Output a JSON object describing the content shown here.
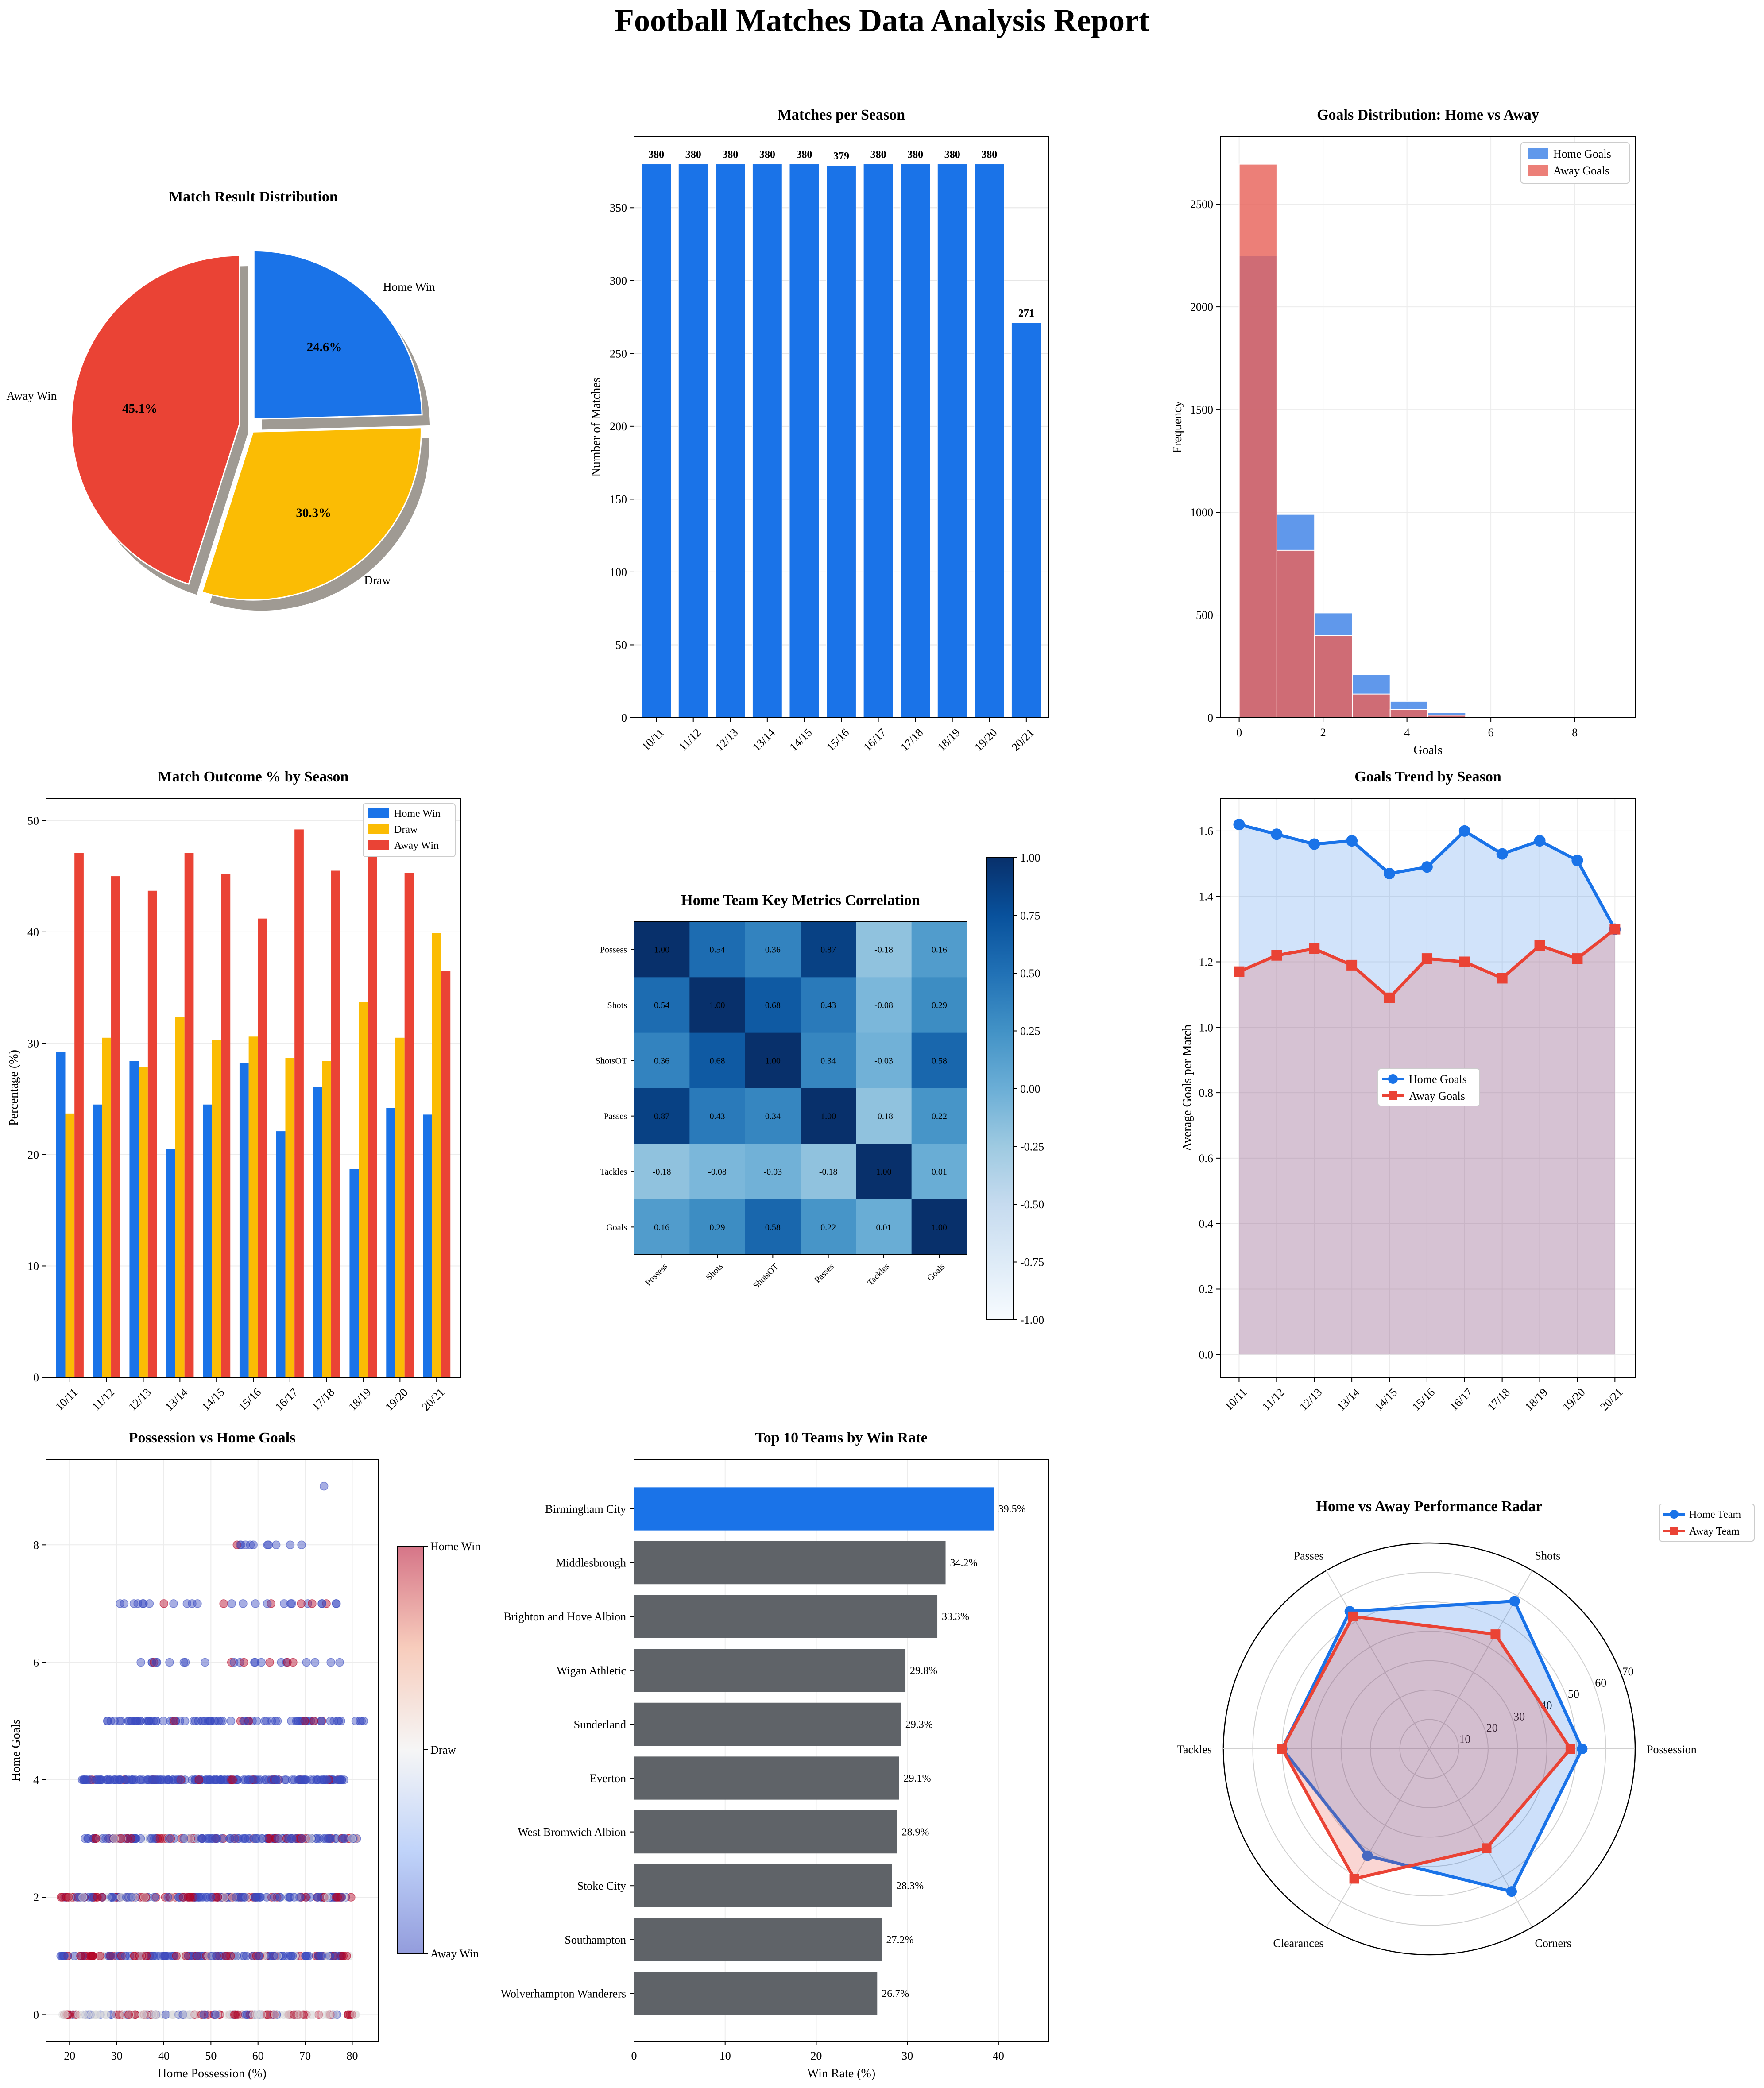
{
  "report_title": "Football Matches Data Analysis Report",
  "colors": {
    "home_win": "#1a73e8",
    "draw": "#fbbc04",
    "away_win": "#ea4335",
    "away_goals_hist": "#e8635a",
    "grey_bar": "#5f6368",
    "away_goals_fill": "#c9b5cc"
  },
  "chart_data": [
    {
      "id": "pie",
      "type": "pie",
      "title": "Match Result Distribution",
      "labels": [
        "Home Win",
        "Draw",
        "Away Win"
      ],
      "values": [
        24.6,
        30.3,
        45.1
      ],
      "value_labels": [
        "24.6%",
        "30.3%",
        "45.1%"
      ],
      "colors": [
        "#1a73e8",
        "#fbbc04",
        "#ea4335"
      ],
      "exploded": true,
      "shadow": true
    },
    {
      "id": "season_matches",
      "type": "bar",
      "title": "Matches per Season",
      "categories": [
        "10/11",
        "11/12",
        "12/13",
        "13/14",
        "14/15",
        "15/16",
        "16/17",
        "17/18",
        "18/19",
        "19/20",
        "20/21"
      ],
      "values": [
        380,
        380,
        380,
        380,
        380,
        379,
        380,
        380,
        380,
        380,
        271
      ],
      "value_labels": [
        "380",
        "380",
        "380",
        "380",
        "380",
        "379",
        "380",
        "380",
        "380",
        "380",
        "271"
      ],
      "xlabel": "",
      "ylabel": "Number of Matches",
      "ylim": [
        0,
        399
      ],
      "yticks": [
        0,
        50,
        100,
        150,
        200,
        250,
        300,
        350
      ],
      "grid": true
    },
    {
      "id": "goal_hist",
      "type": "bar",
      "title": "Goals Distribution: Home vs Away",
      "bins": [
        [
          0,
          0.9
        ],
        [
          0.9,
          1.8
        ],
        [
          1.8,
          2.7
        ],
        [
          2.7,
          3.6
        ],
        [
          3.6,
          4.5
        ],
        [
          4.5,
          5.4
        ],
        [
          5.4,
          6.3
        ],
        [
          6.3,
          7.2
        ],
        [
          7.2,
          8.1
        ],
        [
          8.1,
          9.0
        ]
      ],
      "series": [
        {
          "name": "Home Goals",
          "values": [
            2250,
            990,
            510,
            210,
            80,
            25,
            5,
            3,
            0,
            1
          ]
        },
        {
          "name": "Away Goals",
          "values": [
            2695,
            815,
            400,
            115,
            40,
            12,
            4,
            1,
            0,
            0
          ]
        }
      ],
      "xlabel": "Goals",
      "ylabel": "Frequency",
      "xlim": [
        -0.45,
        9.45
      ],
      "ylim": [
        0,
        2830
      ],
      "xticks": [
        0,
        2,
        4,
        6,
        8
      ],
      "yticks": [
        0,
        500,
        1000,
        1500,
        2000,
        2500
      ],
      "legend": "top-right",
      "grid": true
    },
    {
      "id": "outcome_pct",
      "type": "bar",
      "title": "Match Outcome % by Season",
      "categories": [
        "10/11",
        "11/12",
        "12/13",
        "13/14",
        "14/15",
        "15/16",
        "16/17",
        "17/18",
        "18/19",
        "19/20",
        "20/21"
      ],
      "series": [
        {
          "name": "Home Win",
          "values": [
            29.2,
            24.5,
            28.4,
            20.5,
            24.5,
            28.2,
            22.1,
            26.1,
            18.7,
            24.2,
            23.6
          ]
        },
        {
          "name": "Draw",
          "values": [
            23.7,
            30.5,
            27.9,
            32.4,
            30.3,
            30.6,
            28.7,
            28.4,
            33.7,
            30.5,
            39.9
          ]
        },
        {
          "name": "Away Win",
          "values": [
            47.1,
            45.0,
            43.7,
            47.1,
            45.2,
            41.2,
            49.2,
            45.5,
            47.6,
            45.3,
            36.5
          ]
        }
      ],
      "xlabel": "",
      "ylabel": "Percentage (%)",
      "ylim": [
        0,
        52
      ],
      "yticks": [
        0,
        10,
        20,
        30,
        40,
        50
      ],
      "legend": "top-right",
      "grid": true
    },
    {
      "id": "heatmap",
      "type": "heatmap",
      "title": "Home Team Key Metrics Correlation",
      "labels": [
        "Possess",
        "Shots",
        "ShotsOT",
        "Passes",
        "Tackles",
        "Goals"
      ],
      "matrix": [
        [
          1.0,
          0.54,
          0.36,
          0.87,
          -0.18,
          0.16
        ],
        [
          0.54,
          1.0,
          0.68,
          0.43,
          -0.08,
          0.29
        ],
        [
          0.36,
          0.68,
          1.0,
          0.34,
          -0.03,
          0.58
        ],
        [
          0.87,
          0.43,
          0.34,
          1.0,
          -0.18,
          0.22
        ],
        [
          -0.18,
          -0.08,
          -0.03,
          -0.18,
          1.0,
          0.01
        ],
        [
          0.16,
          0.29,
          0.58,
          0.22,
          0.01,
          1.0
        ]
      ],
      "cell_labels": [
        [
          "1.00",
          "0.54",
          "0.36",
          "0.87",
          "-0.18",
          "0.16"
        ],
        [
          "0.54",
          "1.00",
          "0.68",
          "0.43",
          "-0.08",
          "0.29"
        ],
        [
          "0.36",
          "0.68",
          "1.00",
          "0.34",
          "-0.03",
          "0.58"
        ],
        [
          "0.87",
          "0.43",
          "0.34",
          "1.00",
          "-0.18",
          "0.22"
        ],
        [
          "-0.18",
          "-0.08",
          "-0.03",
          "-0.18",
          "1.00",
          "0.01"
        ],
        [
          "0.16",
          "0.29",
          "0.58",
          "0.22",
          "0.01",
          "1.00"
        ]
      ],
      "colorbar_ticks": [
        "1.00",
        "0.75",
        "0.50",
        "0.25",
        "0.00",
        "-0.25",
        "-0.50",
        "-0.75",
        "-1.00"
      ],
      "vmin": -1,
      "vmax": 1,
      "colormap": "Blues"
    },
    {
      "id": "goal_trend",
      "type": "line",
      "title": "Goals Trend by Season",
      "categories": [
        "10/11",
        "11/12",
        "12/13",
        "13/14",
        "14/15",
        "15/16",
        "16/17",
        "17/18",
        "18/19",
        "19/20",
        "20/21"
      ],
      "series": [
        {
          "name": "Home Goals",
          "values": [
            1.62,
            1.59,
            1.56,
            1.57,
            1.47,
            1.49,
            1.6,
            1.53,
            1.57,
            1.51,
            1.3
          ]
        },
        {
          "name": "Away Goals",
          "values": [
            1.17,
            1.22,
            1.24,
            1.19,
            1.09,
            1.21,
            1.2,
            1.15,
            1.25,
            1.21,
            1.3
          ]
        }
      ],
      "xlabel": "",
      "ylabel": "Average Goals per Match",
      "ylim": [
        -0.07,
        1.7
      ],
      "yticks": [
        0.0,
        0.2,
        0.4,
        0.6,
        0.8,
        1.0,
        1.2,
        1.4,
        1.6
      ],
      "ytick_labels": [
        "0.0",
        "0.2",
        "0.4",
        "0.6",
        "0.8",
        "1.0",
        "1.2",
        "1.4",
        "1.6"
      ],
      "legend": "center",
      "grid": true
    },
    {
      "id": "scatter",
      "type": "scatter",
      "title": "Possession vs Home Goals",
      "xlabel": "Home Possession (%)",
      "ylabel": "Home Goals",
      "xlim": [
        15,
        85.5
      ],
      "ylim": [
        -0.45,
        9.45
      ],
      "xticks": [
        20,
        30,
        40,
        50,
        60,
        70,
        80
      ],
      "yticks": [
        0,
        2,
        4,
        6,
        8
      ],
      "colorbar_ticks": [
        "Home Win",
        "Draw",
        "Away Win"
      ],
      "note": "points colored by match result (Away Win = blue, Draw = light, Home Win = red)",
      "rows": [
        {
          "y": 0,
          "xmin": 18,
          "xmax": 81,
          "mix": "draw-away"
        },
        {
          "y": 1,
          "xmin": 18,
          "xmax": 80,
          "mix": "mixed"
        },
        {
          "y": 2,
          "xmin": 18,
          "xmax": 80,
          "mix": "mixed"
        },
        {
          "y": 3,
          "xmin": 23,
          "xmax": 81,
          "mix": "mixed"
        },
        {
          "y": 4,
          "xmin": 22,
          "xmax": 79,
          "mix": "home"
        },
        {
          "y": 5,
          "xmin": 28,
          "xmax": 83,
          "mix": "home"
        },
        {
          "y": 6,
          "xmin": 35,
          "xmax": 78,
          "mix": "home"
        },
        {
          "y": 7,
          "xmin": 30,
          "xmax": 79,
          "mix": "home"
        },
        {
          "y": 8,
          "xmin": 52,
          "xmax": 71,
          "mix": "home"
        },
        {
          "y": 9,
          "xmin": 74,
          "xmax": 74,
          "mix": "home"
        }
      ]
    },
    {
      "id": "top_teams",
      "type": "bar",
      "orientation": "horizontal",
      "title": "Top 10 Teams by Win Rate",
      "categories": [
        "Birmingham City",
        "Middlesbrough",
        "Brighton and Hove Albion",
        "Wigan Athletic",
        "Sunderland",
        "Everton",
        "West Bromwich Albion",
        "Stoke City",
        "Southampton",
        "Wolverhampton Wanderers"
      ],
      "values": [
        39.5,
        34.2,
        33.3,
        29.8,
        29.3,
        29.1,
        28.9,
        28.3,
        27.2,
        26.7
      ],
      "value_labels": [
        "39.5%",
        "34.2%",
        "33.3%",
        "29.8%",
        "29.3%",
        "29.1%",
        "28.9%",
        "28.3%",
        "27.2%",
        "26.7%"
      ],
      "xlabel": "Win Rate (%)",
      "ylabel": "",
      "xlim": [
        0,
        45.5
      ],
      "xticks": [
        0,
        10,
        20,
        30,
        40
      ],
      "grid": true
    },
    {
      "id": "radar",
      "type": "radar",
      "title": "Home vs Away Performance Radar",
      "axes": [
        "Possession",
        "Shots",
        "Passes",
        "Tackles",
        "Clearances",
        "Corners"
      ],
      "series": [
        {
          "name": "Home Team",
          "values": [
            52,
            58,
            54,
            50,
            42,
            56
          ]
        },
        {
          "name": "Away Team",
          "values": [
            48,
            45,
            52,
            50,
            51,
            39
          ]
        }
      ],
      "rmax": 70,
      "rticks": [
        10,
        20,
        30,
        40,
        50,
        60,
        70
      ],
      "legend": "top-right"
    }
  ]
}
